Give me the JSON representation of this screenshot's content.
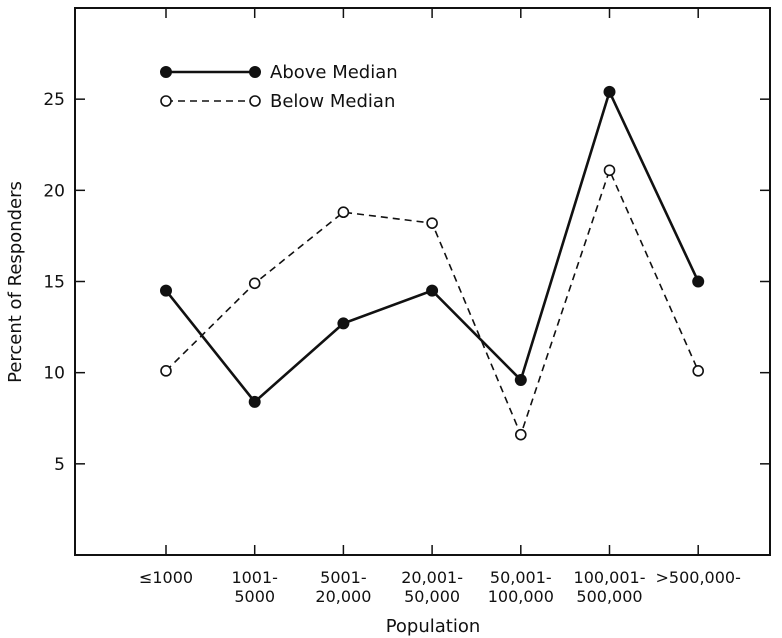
{
  "chart_data": {
    "type": "line",
    "categories": [
      "≤1000",
      "1001-\n5000",
      "5001-\n20,000",
      "20,001-\n50,000",
      "50,001-\n100,000",
      "100,001-\n500,000",
      ">500,000-"
    ],
    "series": [
      {
        "name": "Above Median",
        "style": "solid-filled",
        "values": [
          14.5,
          8.4,
          12.7,
          14.5,
          9.6,
          25.4,
          15.0
        ]
      },
      {
        "name": "Below Median",
        "style": "dashed-open",
        "values": [
          10.1,
          14.9,
          18.8,
          18.2,
          6.6,
          21.1,
          10.1
        ]
      }
    ],
    "title": "",
    "xlabel": "Population",
    "ylabel": "Percent of Responders",
    "yticks": [
      5,
      10,
      15,
      20,
      25
    ],
    "ylim": [
      0,
      30
    ],
    "grid": false,
    "legend_position": "top-left",
    "colors": {
      "line": "#111111",
      "background": "#ffffff"
    }
  }
}
